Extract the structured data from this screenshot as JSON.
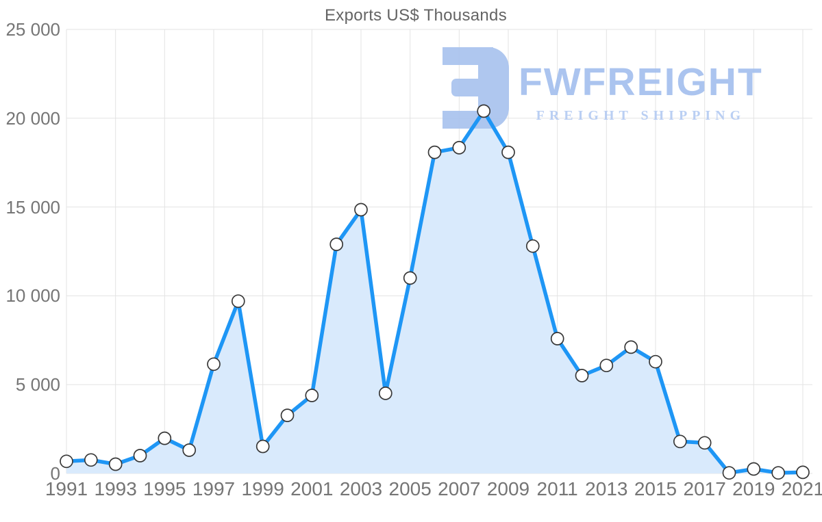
{
  "title": "Exports US$ Thousands",
  "watermark": {
    "brand": "FWFREIGHT",
    "tagline": "FREIGHT SHIPPING",
    "icon_color": "#a9c3ee",
    "brand_color": "#a4c0ee",
    "tagline_color": "#b5cbf2"
  },
  "chart_data": {
    "type": "area",
    "title": "Exports US$ Thousands",
    "xlabel": "",
    "ylabel": "",
    "x": [
      1991,
      1992,
      1993,
      1994,
      1995,
      1996,
      1997,
      1998,
      1999,
      2000,
      2001,
      2002,
      2003,
      2004,
      2005,
      2006,
      2007,
      2008,
      2009,
      2010,
      2011,
      2012,
      2013,
      2014,
      2015,
      2016,
      2017,
      2018,
      2019,
      2020,
      2021
    ],
    "values": [
      680,
      760,
      520,
      1000,
      1980,
      1310,
      6150,
      9700,
      1520,
      3270,
      4390,
      12900,
      14850,
      4510,
      11000,
      18080,
      18340,
      20400,
      18080,
      12800,
      7590,
      5510,
      6080,
      7110,
      6290,
      1800,
      1720,
      30,
      250,
      30,
      60
    ],
    "series_name": "Exports US$ Thousands",
    "ylim": [
      0,
      25000
    ],
    "y_ticks": [
      0,
      5000,
      10000,
      15000,
      20000,
      25000
    ],
    "y_tick_labels": [
      "0",
      "5 000",
      "10 000",
      "15 000",
      "20 000",
      "25 000"
    ],
    "x_tick_labels": [
      "1991",
      "1993",
      "1995",
      "1997",
      "1999",
      "2001",
      "2003",
      "2005",
      "2007",
      "2009",
      "2011",
      "2013",
      "2015",
      "2017",
      "2019",
      "2021"
    ],
    "grid": true,
    "legend": "none",
    "line_color": "#1e96f5",
    "fill_color": "#d9eafc",
    "marker_fill": "#ffffff",
    "marker_stroke": "#383838",
    "grid_color": "#e3e3e3",
    "axis_text_color": "#757575",
    "title_color": "#646464"
  }
}
